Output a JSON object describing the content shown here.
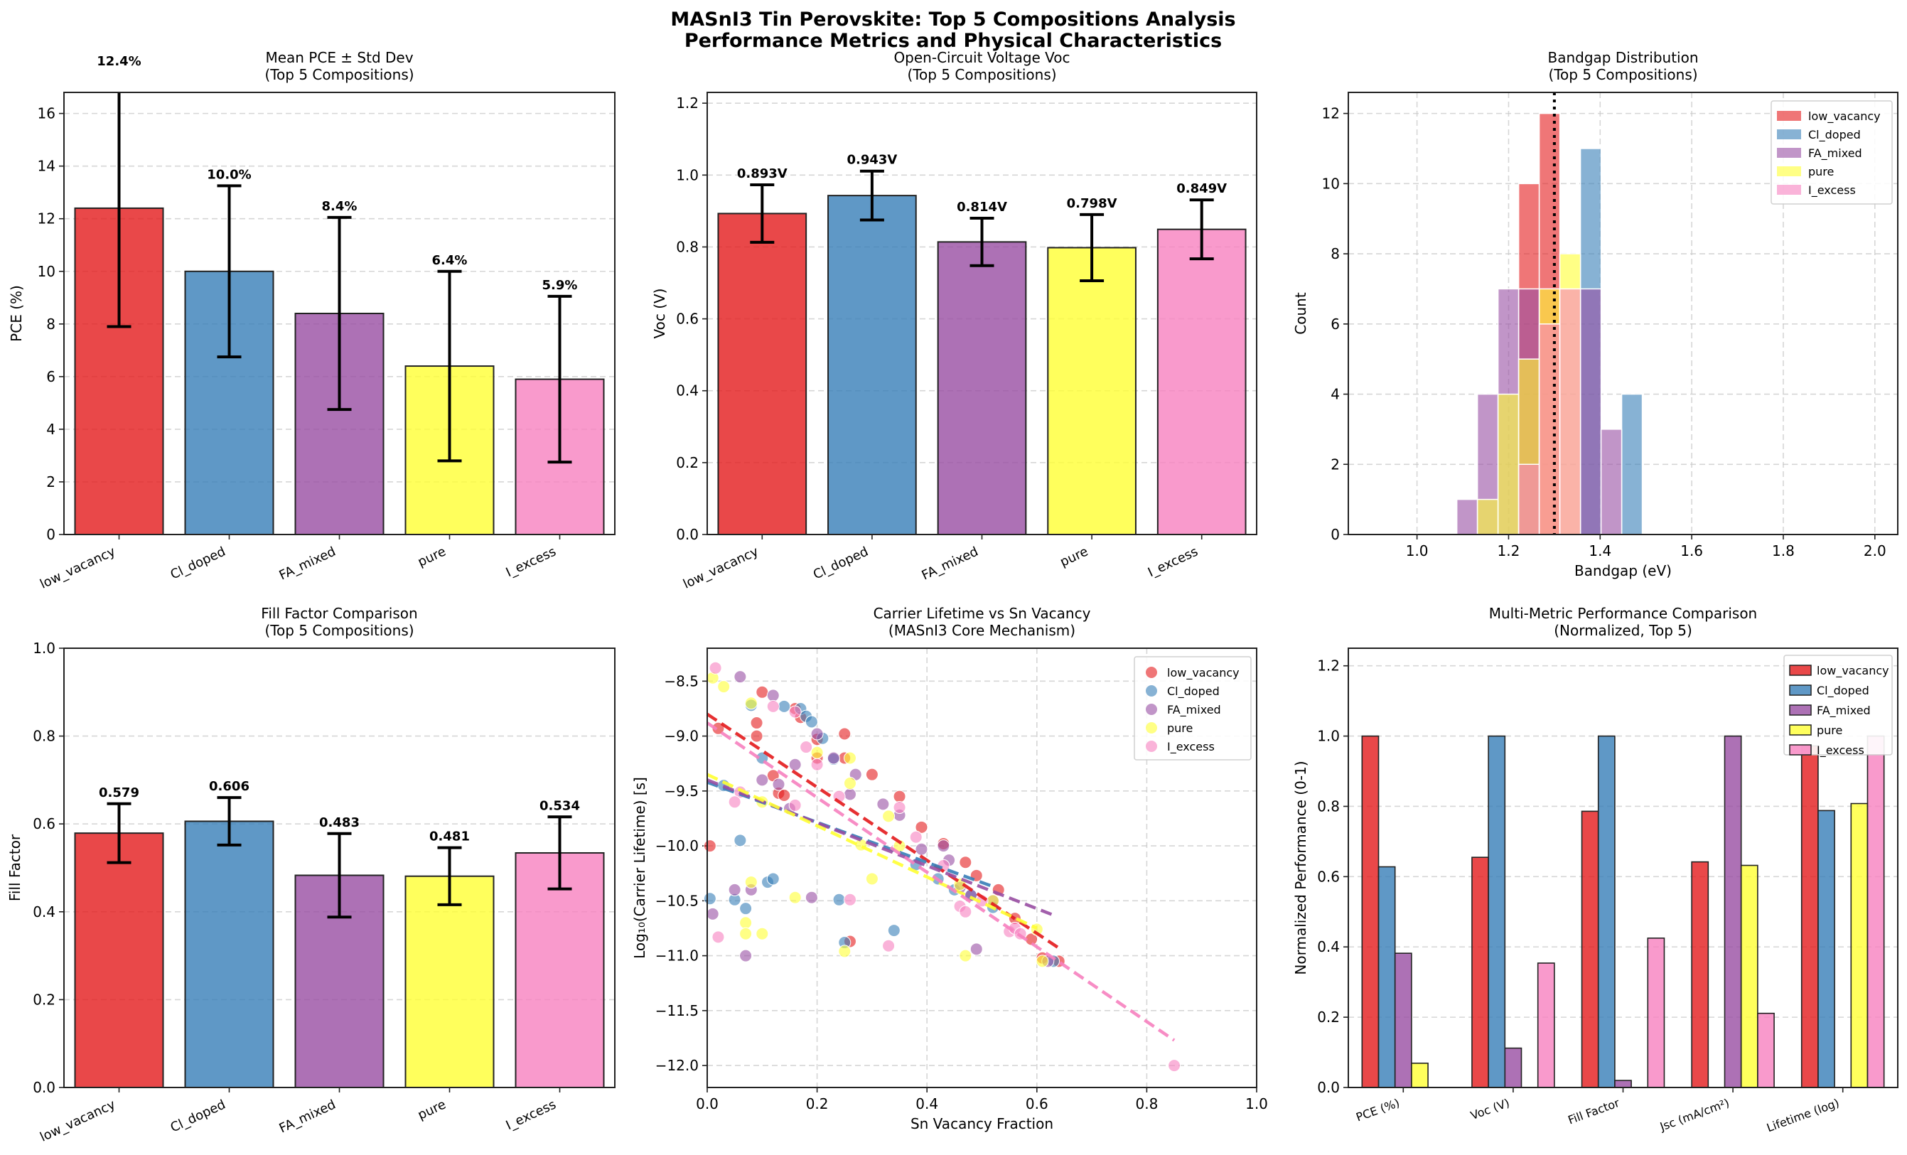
{
  "figure": {
    "suptitle_line1": "MASnI3 Tin Perovskite: Top 5 Compositions Analysis",
    "suptitle_line2": "Performance Metrics and Physical Characteristics"
  },
  "colors": {
    "low_vacancy": "#e41a1c",
    "Cl_doped": "#377eb8",
    "FA_mixed": "#984ea3",
    "pure": "#ffff33",
    "I_excess": "#f781bf"
  },
  "chart_data": [
    {
      "id": "pce",
      "type": "bar",
      "title_line1": "Mean PCE ± Std Dev",
      "title_line2": "(Top 5 Compositions)",
      "xlabel": "",
      "ylabel": "PCE (%)",
      "ylim": [
        0,
        16.8
      ],
      "yticks": [
        0,
        2,
        4,
        6,
        8,
        10,
        12,
        14,
        16
      ],
      "ytick_labels": [
        "0",
        "2",
        "4",
        "6",
        "8",
        "10",
        "12",
        "14",
        "16"
      ],
      "grid": "y-dashed",
      "categories": [
        "low_vacancy",
        "Cl_doped",
        "FA_mixed",
        "pure",
        "I_excess"
      ],
      "values": [
        12.4,
        10.0,
        8.4,
        6.4,
        5.9
      ],
      "errors": [
        4.5,
        3.25,
        3.65,
        3.6,
        3.15
      ],
      "data_labels": [
        "12.4%",
        "10.0%",
        "8.4%",
        "6.4%",
        "5.9%"
      ]
    },
    {
      "id": "voc",
      "type": "bar",
      "title_line1": "Open-Circuit Voltage Voc",
      "title_line2": "(Top 5 Compositions)",
      "xlabel": "",
      "ylabel": "Voc (V)",
      "ylim": [
        0,
        1.23
      ],
      "yticks": [
        0,
        0.2,
        0.4,
        0.6,
        0.8,
        1.0,
        1.2
      ],
      "ytick_labels": [
        "0.0",
        "0.2",
        "0.4",
        "0.6",
        "0.8",
        "1.0",
        "1.2"
      ],
      "grid": "y-dashed",
      "categories": [
        "low_vacancy",
        "Cl_doped",
        "FA_mixed",
        "pure",
        "I_excess"
      ],
      "values": [
        0.893,
        0.943,
        0.814,
        0.798,
        0.849
      ],
      "errors": [
        0.08,
        0.068,
        0.066,
        0.092,
        0.082
      ],
      "data_labels": [
        "0.893V",
        "0.943V",
        "0.814V",
        "0.798V",
        "0.849V"
      ]
    },
    {
      "id": "bandgap",
      "type": "histogram",
      "title_line1": "Bandgap Distribution",
      "title_line2": "(Top 5 Compositions)",
      "xlabel": "Bandgap (eV)",
      "ylabel": "Count",
      "xlim": [
        0.85,
        2.05
      ],
      "ylim": [
        0,
        12.6
      ],
      "xticks": [
        1.0,
        1.2,
        1.4,
        1.6,
        1.8,
        2.0
      ],
      "xtick_labels": [
        "1.0",
        "1.2",
        "1.4",
        "1.6",
        "1.8",
        "2.0"
      ],
      "yticks": [
        0,
        2,
        4,
        6,
        8,
        10,
        12
      ],
      "ytick_labels": [
        "0",
        "2",
        "4",
        "6",
        "8",
        "10",
        "12"
      ],
      "grid": "both-dashed",
      "reference_line_x": 1.3,
      "legend_position": "top-right",
      "bin_width": 0.045,
      "series": [
        {
          "name": "low_vacancy",
          "bins": [
            [
              1.222,
              1.267,
              10
            ],
            [
              1.267,
              1.312,
              12
            ]
          ]
        },
        {
          "name": "Cl_doped",
          "bins": [
            [
              1.357,
              1.402,
              11
            ],
            [
              1.447,
              1.492,
              4
            ]
          ]
        },
        {
          "name": "FA_mixed",
          "bins": [
            [
              1.087,
              1.132,
              1
            ],
            [
              1.132,
              1.177,
              4
            ],
            [
              1.177,
              1.222,
              7
            ],
            [
              1.222,
              1.267,
              7
            ],
            [
              1.357,
              1.402,
              7
            ],
            [
              1.402,
              1.447,
              3
            ]
          ]
        },
        {
          "name": "pure",
          "bins": [
            [
              1.132,
              1.177,
              1
            ],
            [
              1.177,
              1.222,
              4
            ],
            [
              1.222,
              1.267,
              5
            ],
            [
              1.267,
              1.312,
              7
            ],
            [
              1.312,
              1.357,
              8
            ]
          ]
        },
        {
          "name": "I_excess",
          "bins": [
            [
              1.222,
              1.267,
              2
            ],
            [
              1.267,
              1.312,
              6
            ],
            [
              1.312,
              1.357,
              7
            ]
          ]
        }
      ]
    },
    {
      "id": "fill_factor",
      "type": "bar",
      "title_line1": "Fill Factor Comparison",
      "title_line2": "(Top 5 Compositions)",
      "xlabel": "",
      "ylabel": "Fill Factor",
      "ylim": [
        0,
        1.0
      ],
      "yticks": [
        0,
        0.2,
        0.4,
        0.6,
        0.8,
        1.0
      ],
      "ytick_labels": [
        "0.0",
        "0.2",
        "0.4",
        "0.6",
        "0.8",
        "1.0"
      ],
      "grid": "y-dashed",
      "categories": [
        "low_vacancy",
        "Cl_doped",
        "FA_mixed",
        "pure",
        "I_excess"
      ],
      "values": [
        0.579,
        0.606,
        0.483,
        0.481,
        0.534
      ],
      "errors": [
        0.067,
        0.054,
        0.095,
        0.065,
        0.082
      ],
      "data_labels": [
        "0.579",
        "0.606",
        "0.483",
        "0.481",
        "0.534"
      ]
    },
    {
      "id": "lifetime_scatter",
      "type": "scatter",
      "title_line1": "Carrier Lifetime vs Sn Vacancy",
      "title_line2": "(MASnI3 Core Mechanism)",
      "xlabel": "Sn Vacancy Fraction",
      "ylabel": "Log₁₀(Carrier Lifetime) [s]",
      "xlim": [
        0,
        1.0
      ],
      "ylim": [
        -12.2,
        -8.2
      ],
      "xticks": [
        0,
        0.2,
        0.4,
        0.6,
        0.8,
        1.0
      ],
      "xtick_labels": [
        "0.0",
        "0.2",
        "0.4",
        "0.6",
        "0.8",
        "1.0"
      ],
      "yticks": [
        -8.5,
        -9.0,
        -9.5,
        -10.0,
        -10.5,
        -11.0,
        -11.5,
        -12.0
      ],
      "ytick_labels": [
        "−8.5",
        "−9.0",
        "−9.5",
        "−10.0",
        "−10.5",
        "−11.0",
        "−11.5",
        "−12.0"
      ],
      "grid": "both-dashed",
      "legend_position": "top-right",
      "series": [
        {
          "name": "low_vacancy",
          "points": [
            [
              0.005,
              -10.0
            ],
            [
              0.02,
              -8.93
            ],
            [
              0.09,
              -8.88
            ],
            [
              0.1,
              -8.6
            ],
            [
              0.09,
              -9.0
            ],
            [
              0.12,
              -9.36
            ],
            [
              0.13,
              -9.52
            ],
            [
              0.16,
              -8.75
            ],
            [
              0.17,
              -8.83
            ],
            [
              0.2,
              -9.2
            ],
            [
              0.25,
              -9.2
            ],
            [
              0.3,
              -9.35
            ],
            [
              0.25,
              -8.98
            ],
            [
              0.2,
              -9.03
            ],
            [
              0.35,
              -9.55
            ],
            [
              0.39,
              -9.83
            ],
            [
              0.43,
              -9.98
            ],
            [
              0.47,
              -10.15
            ],
            [
              0.49,
              -10.27
            ],
            [
              0.53,
              -10.4
            ],
            [
              0.26,
              -10.87
            ],
            [
              0.56,
              -10.66
            ],
            [
              0.59,
              -10.85
            ],
            [
              0.61,
              -11.02
            ],
            [
              0.64,
              -11.05
            ],
            [
              0.14,
              -9.54
            ]
          ]
        },
        {
          "name": "Cl_doped",
          "points": [
            [
              0.005,
              -10.48
            ],
            [
              0.03,
              -9.45
            ],
            [
              0.05,
              -10.49
            ],
            [
              0.06,
              -9.95
            ],
            [
              0.1,
              -9.2
            ],
            [
              0.11,
              -10.33
            ],
            [
              0.12,
              -10.3
            ],
            [
              0.14,
              -8.73
            ],
            [
              0.17,
              -8.75
            ],
            [
              0.18,
              -8.82
            ],
            [
              0.19,
              -8.87
            ],
            [
              0.21,
              -9.02
            ],
            [
              0.23,
              -9.21
            ],
            [
              0.24,
              -10.49
            ],
            [
              0.25,
              -10.88
            ],
            [
              0.34,
              -10.77
            ],
            [
              0.38,
              -10.17
            ],
            [
              0.42,
              -10.3
            ],
            [
              0.45,
              -10.4
            ],
            [
              0.48,
              -10.45
            ],
            [
              0.52,
              -10.56
            ],
            [
              0.63,
              -11.05
            ],
            [
              0.08,
              -8.72
            ],
            [
              0.07,
              -10.57
            ]
          ]
        },
        {
          "name": "FA_mixed",
          "points": [
            [
              0.06,
              -8.46
            ],
            [
              0.12,
              -8.63
            ],
            [
              0.1,
              -9.4
            ],
            [
              0.13,
              -9.44
            ],
            [
              0.16,
              -9.26
            ],
            [
              0.2,
              -8.98
            ],
            [
              0.23,
              -9.2
            ],
            [
              0.26,
              -9.53
            ],
            [
              0.27,
              -9.35
            ],
            [
              0.32,
              -9.62
            ],
            [
              0.35,
              -9.72
            ],
            [
              0.39,
              -10.03
            ],
            [
              0.43,
              -10.0
            ],
            [
              0.44,
              -10.13
            ],
            [
              0.46,
              -10.38
            ],
            [
              0.48,
              -10.45
            ],
            [
              0.52,
              -10.5
            ],
            [
              0.49,
              -10.94
            ],
            [
              0.07,
              -11.0
            ],
            [
              0.05,
              -10.4
            ],
            [
              0.08,
              -10.4
            ],
            [
              0.19,
              -10.47
            ],
            [
              0.62,
              -11.05
            ],
            [
              0.15,
              -9.66
            ],
            [
              0.01,
              -10.62
            ]
          ]
        },
        {
          "name": "pure",
          "points": [
            [
              0.01,
              -8.47
            ],
            [
              0.03,
              -8.55
            ],
            [
              0.08,
              -8.7
            ],
            [
              0.1,
              -9.6
            ],
            [
              0.16,
              -10.47
            ],
            [
              0.2,
              -9.15
            ],
            [
              0.26,
              -9.43
            ],
            [
              0.3,
              -10.3
            ],
            [
              0.33,
              -9.73
            ],
            [
              0.28,
              -9.99
            ],
            [
              0.35,
              -10.0
            ],
            [
              0.07,
              -10.7
            ],
            [
              0.07,
              -10.8
            ],
            [
              0.1,
              -10.8
            ],
            [
              0.25,
              -10.96
            ],
            [
              0.47,
              -11.0
            ],
            [
              0.52,
              -10.5
            ],
            [
              0.08,
              -10.33
            ],
            [
              0.6,
              -10.76
            ],
            [
              0.61,
              -11.05
            ],
            [
              0.26,
              -9.2
            ],
            [
              0.46,
              -10.35
            ]
          ]
        },
        {
          "name": "I_excess",
          "points": [
            [
              0.015,
              -8.38
            ],
            [
              0.06,
              -9.51
            ],
            [
              0.05,
              -9.6
            ],
            [
              0.12,
              -8.73
            ],
            [
              0.16,
              -8.78
            ],
            [
              0.18,
              -9.1
            ],
            [
              0.24,
              -9.55
            ],
            [
              0.2,
              -9.26
            ],
            [
              0.35,
              -9.65
            ],
            [
              0.38,
              -9.92
            ],
            [
              0.43,
              -10.18
            ],
            [
              0.46,
              -10.55
            ],
            [
              0.47,
              -10.6
            ],
            [
              0.5,
              -10.5
            ],
            [
              0.55,
              -10.78
            ],
            [
              0.56,
              -10.75
            ],
            [
              0.33,
              -10.91
            ],
            [
              0.26,
              -10.49
            ],
            [
              0.02,
              -10.83
            ],
            [
              0.85,
              -12.0
            ],
            [
              0.16,
              -9.63
            ],
            [
              0.57,
              -10.8
            ]
          ]
        }
      ],
      "fit_lines": [
        {
          "name": "low_vacancy",
          "x": [
            0.0,
            0.64
          ],
          "y": [
            -8.8,
            -10.93
          ],
          "style": "dashed"
        },
        {
          "name": "Cl_doped",
          "x": [
            0.0,
            0.52
          ],
          "y": [
            -9.42,
            -10.37
          ],
          "style": "dashed"
        },
        {
          "name": "FA_mixed",
          "x": [
            0.0,
            0.63
          ],
          "y": [
            -9.4,
            -10.63
          ],
          "style": "dashed"
        },
        {
          "name": "pure",
          "x": [
            0.0,
            0.6
          ],
          "y": [
            -9.35,
            -10.75
          ],
          "style": "dashed"
        },
        {
          "name": "I_excess",
          "x": [
            0.0,
            0.85
          ],
          "y": [
            -8.88,
            -11.77
          ],
          "style": "dashed"
        }
      ]
    },
    {
      "id": "multi_metric",
      "type": "bar",
      "grouped": true,
      "title_line1": "Multi-Metric Performance Comparison",
      "title_line2": "(Normalized, Top 5)",
      "xlabel": "",
      "ylabel": "Normalized Performance (0-1)",
      "ylim": [
        0,
        1.25
      ],
      "yticks": [
        0,
        0.2,
        0.4,
        0.6,
        0.8,
        1.0,
        1.2
      ],
      "ytick_labels": [
        "0.0",
        "0.2",
        "0.4",
        "0.6",
        "0.8",
        "1.0",
        "1.2"
      ],
      "grid": "y-dashed",
      "legend_position": "top-right",
      "categories": [
        "PCE (%)",
        "Voc (V)",
        "Fill Factor",
        "Jsc (mA/cm²)",
        "Lifetime (log)"
      ],
      "series": [
        {
          "name": "low_vacancy",
          "values": [
            1.0,
            0.655,
            0.786,
            0.642,
            0.972
          ]
        },
        {
          "name": "Cl_doped",
          "values": [
            0.628,
            1.0,
            1.0,
            0.0,
            0.788
          ]
        },
        {
          "name": "FA_mixed",
          "values": [
            0.382,
            0.112,
            0.02,
            1.0,
            0.0
          ]
        },
        {
          "name": "pure",
          "values": [
            0.069,
            0.0,
            0.0,
            0.632,
            0.808
          ]
        },
        {
          "name": "I_excess",
          "values": [
            0.0,
            0.354,
            0.425,
            0.211,
            1.0
          ]
        }
      ]
    }
  ]
}
